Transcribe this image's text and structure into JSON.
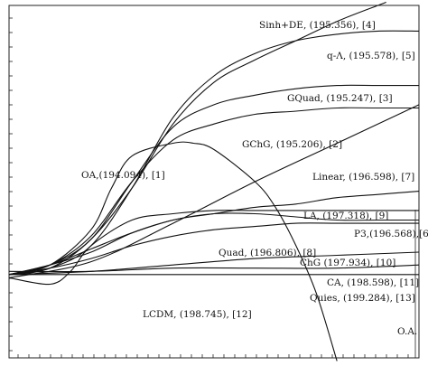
{
  "chart_data": {
    "type": "line",
    "title": "",
    "xlabel": "",
    "ylabel": "",
    "xlim": [
      0,
      1
    ],
    "ylim": [
      -0.55,
      0.55
    ],
    "grid": false,
    "series": [
      {
        "name": "Sinh+DE, (195.356), [4]",
        "x": [
          0.0,
          0.1,
          0.2,
          0.3,
          0.4,
          0.5,
          0.6,
          0.7,
          0.8,
          0.9,
          0.92
        ],
        "y": [
          -0.29,
          -0.27,
          -0.18,
          -0.02,
          0.18,
          0.31,
          0.38,
          0.44,
          0.5,
          0.55,
          0.56
        ]
      },
      {
        "name": "q-Λ, (195.578), [5]",
        "x": [
          0.0,
          0.1,
          0.2,
          0.3,
          0.4,
          0.5,
          0.6,
          0.7,
          0.8,
          0.9,
          1.0
        ],
        "y": [
          -0.29,
          -0.27,
          -0.2,
          -0.02,
          0.2,
          0.33,
          0.4,
          0.44,
          0.46,
          0.47,
          0.47
        ]
      },
      {
        "name": "GQuad, (195.247), [3]",
        "x": [
          0.0,
          0.1,
          0.2,
          0.3,
          0.4,
          0.5,
          0.6,
          0.7,
          0.8,
          0.9,
          1.0
        ],
        "y": [
          -0.29,
          -0.26,
          -0.18,
          0.0,
          0.17,
          0.24,
          0.27,
          0.29,
          0.3,
          0.3,
          0.3
        ]
      },
      {
        "name": "GChG, (195.206), [2]",
        "x": [
          0.0,
          0.1,
          0.2,
          0.3,
          0.4,
          0.5,
          0.6,
          0.7,
          0.8,
          0.9,
          1.0
        ],
        "y": [
          -0.29,
          -0.26,
          -0.17,
          0.0,
          0.13,
          0.18,
          0.21,
          0.22,
          0.23,
          0.23,
          0.23
        ]
      },
      {
        "name": "OA,(194.094), [1]",
        "x": [
          0.0,
          0.1,
          0.2,
          0.25,
          0.3,
          0.4,
          0.45,
          0.5,
          0.6,
          0.65,
          0.7,
          0.75,
          0.8
        ],
        "y": [
          -0.29,
          -0.26,
          -0.15,
          -0.02,
          0.08,
          0.12,
          0.12,
          0.1,
          0.0,
          -0.08,
          -0.2,
          -0.35,
          -0.56
        ]
      },
      {
        "name": "Linear, (196.598), [7]",
        "x": [
          0.0,
          0.2,
          0.4,
          0.6,
          0.8,
          1.0
        ],
        "y": [
          -0.3,
          -0.25,
          -0.13,
          0.0,
          0.12,
          0.24
        ]
      },
      {
        "name": "LA, (197.318), [9]",
        "x": [
          0.0,
          0.1,
          0.2,
          0.3,
          0.4,
          0.5,
          0.6,
          0.7,
          0.8,
          0.9,
          1.0
        ],
        "y": [
          -0.29,
          -0.26,
          -0.22,
          -0.16,
          -0.12,
          -0.1,
          -0.08,
          -0.07,
          -0.05,
          -0.04,
          -0.03
        ]
      },
      {
        "name": "P3,(196.568),[6]",
        "x": [
          0.0,
          0.1,
          0.15,
          0.2,
          0.3,
          0.4,
          0.5,
          0.6,
          0.7,
          0.8,
          0.9,
          1.0
        ],
        "y": [
          -0.3,
          -0.32,
          -0.28,
          -0.2,
          -0.12,
          -0.1,
          -0.09,
          -0.09,
          -0.09,
          -0.09,
          -0.09,
          -0.09
        ]
      },
      {
        "name": "Quad, (196.806), [8]",
        "x": [
          0.0,
          0.1,
          0.2,
          0.3,
          0.4,
          0.5,
          0.6,
          0.7,
          0.8,
          0.9,
          1.0
        ],
        "y": [
          -0.29,
          -0.26,
          -0.21,
          -0.16,
          -0.12,
          -0.1,
          -0.1,
          -0.11,
          -0.12,
          -0.12,
          -0.12
        ]
      },
      {
        "name": "ChG (197.934), [10]",
        "x": [
          0.0,
          0.1,
          0.2,
          0.3,
          0.4,
          0.5,
          0.6,
          0.7,
          0.8,
          0.9,
          1.0
        ],
        "y": [
          -0.29,
          -0.27,
          -0.24,
          -0.2,
          -0.17,
          -0.15,
          -0.14,
          -0.13,
          -0.13,
          -0.13,
          -0.13
        ]
      },
      {
        "name": "CA, (198.598), [11]",
        "x": [
          0.0,
          0.2,
          0.4,
          0.6,
          0.8,
          1.0
        ],
        "y": [
          -0.29,
          -0.28,
          -0.26,
          -0.24,
          -0.23,
          -0.22
        ]
      },
      {
        "name": "Quies, (199.284), [13]",
        "x": [
          0.0,
          0.2,
          0.4,
          0.6,
          0.8,
          1.0
        ],
        "y": [
          -0.28,
          -0.28,
          -0.27,
          -0.27,
          -0.27,
          -0.26
        ]
      },
      {
        "name": "LCDM, (198.745), [12]",
        "x": [
          0.0,
          0.2,
          0.4,
          0.6,
          0.8,
          1.0
        ],
        "y": [
          -0.29,
          -0.29,
          -0.29,
          -0.29,
          -0.29,
          -0.29
        ]
      }
    ],
    "annotations": [
      {
        "text": "O.A."
      }
    ]
  }
}
